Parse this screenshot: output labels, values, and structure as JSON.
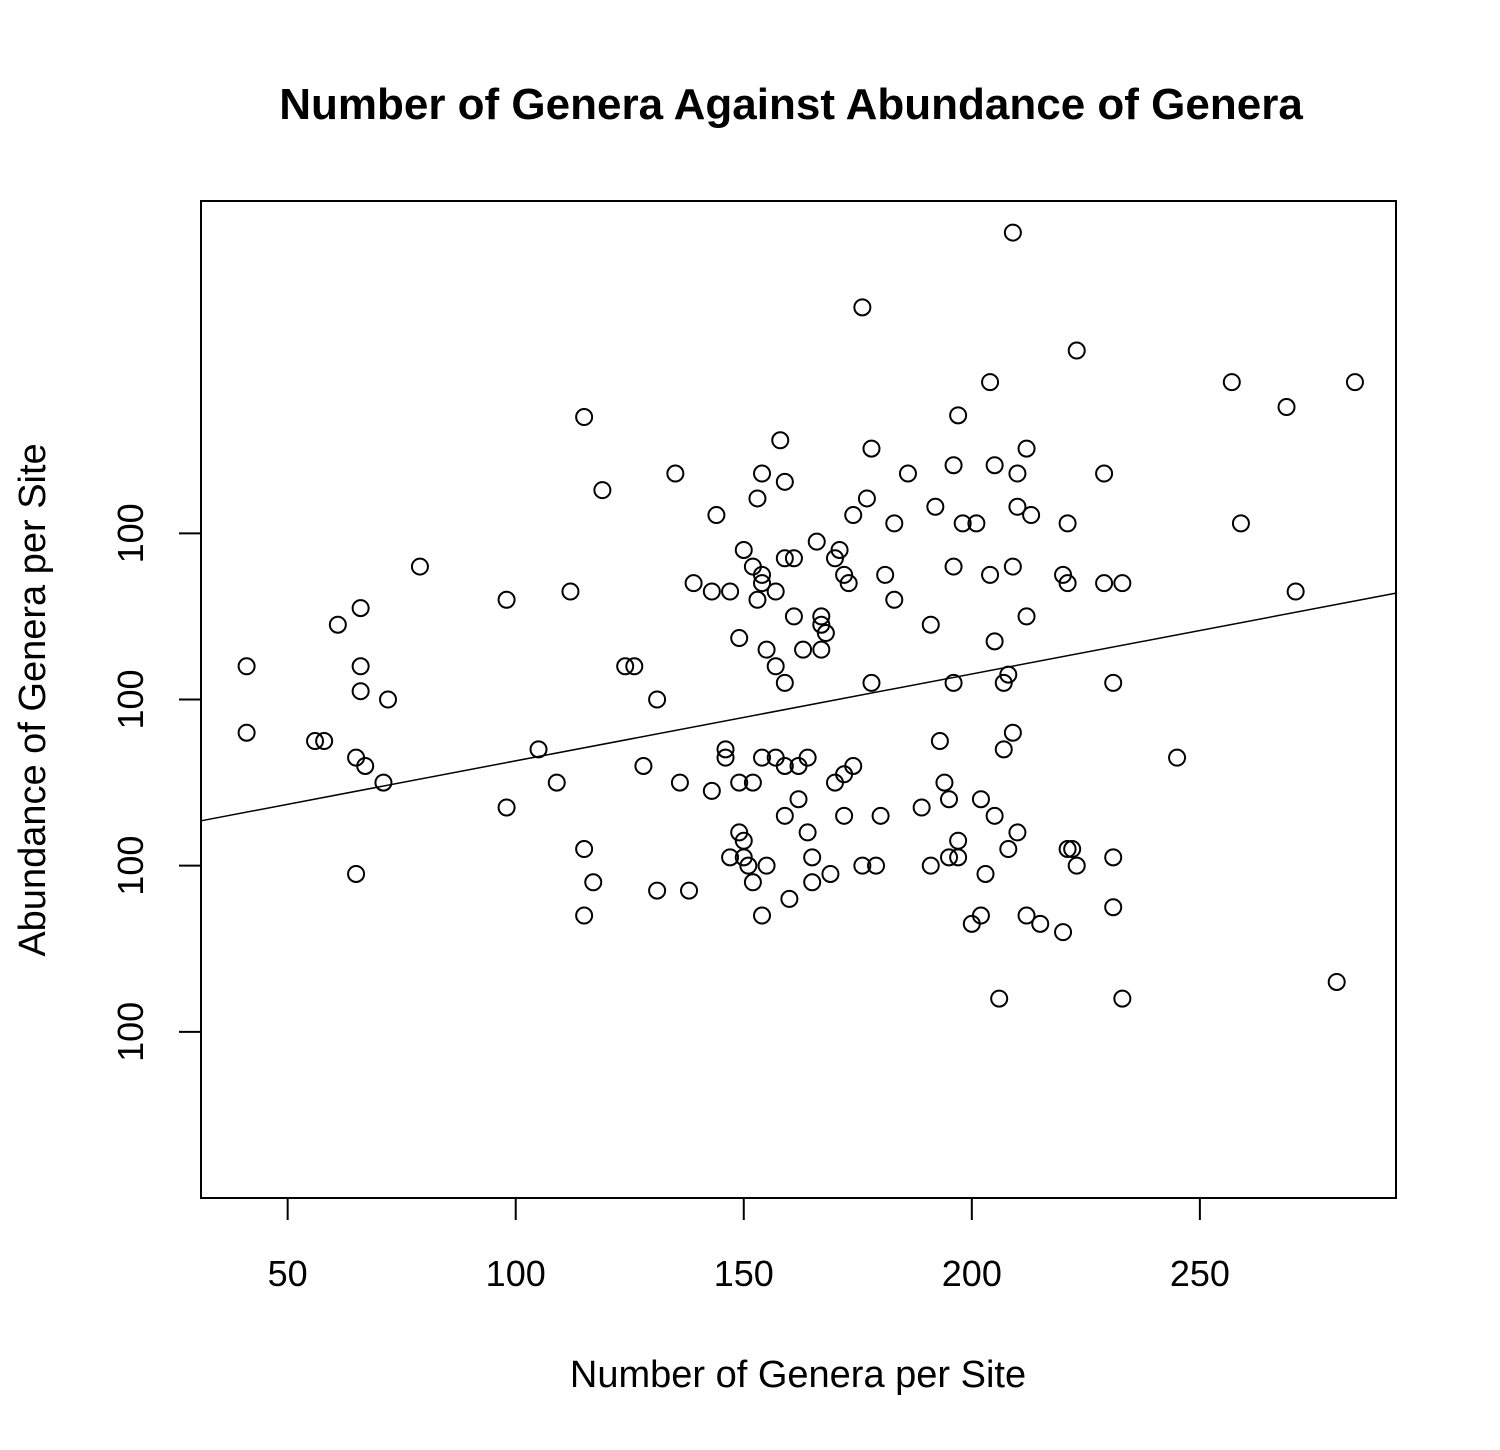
{
  "chart_data": {
    "type": "scatter",
    "title": "Number of Genera  Against Abundance of Genera",
    "xlabel": "Number of Genera per Site",
    "ylabel": "Abundance of Genera per Site",
    "xlim": [
      31,
      293
    ],
    "ylim": [
      79.9,
      80.5
    ],
    "x_ticks": [
      50,
      100,
      150,
      200,
      250
    ],
    "y_ticks": [
      {
        "value": 80.0,
        "label": "100"
      },
      {
        "value": 80.1,
        "label": "100"
      },
      {
        "value": 80.2,
        "label": "100"
      },
      {
        "value": 80.3,
        "label": "100"
      }
    ],
    "regression_line": {
      "x": [
        31,
        293
      ],
      "y": [
        80.127,
        80.264
      ]
    },
    "points": [
      [
        41,
        80.22
      ],
      [
        41,
        80.18
      ],
      [
        56,
        80.175
      ],
      [
        58,
        80.175
      ],
      [
        61,
        80.245
      ],
      [
        65,
        80.165
      ],
      [
        65,
        80.095
      ],
      [
        66,
        80.255
      ],
      [
        66,
        80.22
      ],
      [
        66,
        80.205
      ],
      [
        67,
        80.16
      ],
      [
        71,
        80.15
      ],
      [
        72,
        80.2
      ],
      [
        79,
        80.28
      ],
      [
        98,
        80.26
      ],
      [
        98,
        80.135
      ],
      [
        105,
        80.17
      ],
      [
        109,
        80.15
      ],
      [
        112,
        80.265
      ],
      [
        115,
        80.37
      ],
      [
        115,
        80.11
      ],
      [
        115,
        80.07
      ],
      [
        117,
        80.09
      ],
      [
        119,
        80.326
      ],
      [
        124,
        80.22
      ],
      [
        126,
        80.22
      ],
      [
        128,
        80.16
      ],
      [
        131,
        80.2
      ],
      [
        131,
        80.085
      ],
      [
        135,
        80.336
      ],
      [
        136,
        80.15
      ],
      [
        138,
        80.085
      ],
      [
        139,
        80.27
      ],
      [
        143,
        80.265
      ],
      [
        143,
        80.145
      ],
      [
        144,
        80.311
      ],
      [
        146,
        80.17
      ],
      [
        146,
        80.165
      ],
      [
        147,
        80.265
      ],
      [
        147,
        80.105
      ],
      [
        149,
        80.237
      ],
      [
        149,
        80.15
      ],
      [
        149,
        80.12
      ],
      [
        150,
        80.29
      ],
      [
        150,
        80.115
      ],
      [
        150,
        80.105
      ],
      [
        151,
        80.1
      ],
      [
        152,
        80.28
      ],
      [
        152,
        80.15
      ],
      [
        152,
        80.09
      ],
      [
        153,
        80.321
      ],
      [
        153,
        80.26
      ],
      [
        154,
        80.336
      ],
      [
        154,
        80.275
      ],
      [
        154,
        80.27
      ],
      [
        154,
        80.165
      ],
      [
        154,
        80.07
      ],
      [
        155,
        80.23
      ],
      [
        155,
        80.1
      ],
      [
        157,
        80.265
      ],
      [
        157,
        80.22
      ],
      [
        157,
        80.165
      ],
      [
        158,
        80.356
      ],
      [
        159,
        80.331
      ],
      [
        159,
        80.285
      ],
      [
        159,
        80.21
      ],
      [
        159,
        80.16
      ],
      [
        159,
        80.13
      ],
      [
        160,
        80.08
      ],
      [
        161,
        80.285
      ],
      [
        161,
        80.25
      ],
      [
        162,
        80.16
      ],
      [
        162,
        80.14
      ],
      [
        163,
        80.23
      ],
      [
        164,
        80.165
      ],
      [
        164,
        80.12
      ],
      [
        165,
        80.105
      ],
      [
        165,
        80.09
      ],
      [
        166,
        80.295
      ],
      [
        167,
        80.25
      ],
      [
        167,
        80.245
      ],
      [
        167,
        80.23
      ],
      [
        168,
        80.24
      ],
      [
        169,
        80.095
      ],
      [
        170,
        80.285
      ],
      [
        170,
        80.15
      ],
      [
        171,
        80.29
      ],
      [
        172,
        80.275
      ],
      [
        172,
        80.155
      ],
      [
        172,
        80.13
      ],
      [
        173,
        80.27
      ],
      [
        174,
        80.311
      ],
      [
        174,
        80.16
      ],
      [
        176,
        80.436
      ],
      [
        176,
        80.1
      ],
      [
        177,
        80.321
      ],
      [
        178,
        80.351
      ],
      [
        178,
        80.21
      ],
      [
        179,
        80.1
      ],
      [
        180,
        80.13
      ],
      [
        181,
        80.275
      ],
      [
        183,
        80.306
      ],
      [
        183,
        80.26
      ],
      [
        186,
        80.336
      ],
      [
        189,
        80.135
      ],
      [
        191,
        80.245
      ],
      [
        191,
        80.1
      ],
      [
        192,
        80.316
      ],
      [
        193,
        80.175
      ],
      [
        194,
        80.15
      ],
      [
        195,
        80.14
      ],
      [
        195,
        80.105
      ],
      [
        196,
        80.341
      ],
      [
        196,
        80.28
      ],
      [
        196,
        80.21
      ],
      [
        197,
        80.371
      ],
      [
        197,
        80.115
      ],
      [
        197,
        80.105
      ],
      [
        198,
        80.306
      ],
      [
        200,
        80.065
      ],
      [
        201,
        80.306
      ],
      [
        202,
        80.14
      ],
      [
        202,
        80.07
      ],
      [
        203,
        80.095
      ],
      [
        204,
        80.391
      ],
      [
        204,
        80.275
      ],
      [
        205,
        80.341
      ],
      [
        205,
        80.235
      ],
      [
        205,
        80.13
      ],
      [
        206,
        80.02
      ],
      [
        207,
        80.21
      ],
      [
        207,
        80.17
      ],
      [
        208,
        80.215
      ],
      [
        208,
        80.11
      ],
      [
        209,
        80.481
      ],
      [
        209,
        80.28
      ],
      [
        209,
        80.18
      ],
      [
        210,
        80.336
      ],
      [
        210,
        80.316
      ],
      [
        210,
        80.12
      ],
      [
        212,
        80.351
      ],
      [
        212,
        80.25
      ],
      [
        212,
        80.07
      ],
      [
        213,
        80.311
      ],
      [
        215,
        80.065
      ],
      [
        220,
        80.06
      ],
      [
        220,
        80.275
      ],
      [
        221,
        80.306
      ],
      [
        221,
        80.27
      ],
      [
        221,
        80.11
      ],
      [
        222,
        80.11
      ],
      [
        223,
        80.41
      ],
      [
        223,
        80.1
      ],
      [
        229,
        80.336
      ],
      [
        229,
        80.27
      ],
      [
        231,
        80.21
      ],
      [
        231,
        80.105
      ],
      [
        231,
        80.075
      ],
      [
        233,
        80.27
      ],
      [
        233,
        80.02
      ],
      [
        245,
        80.165
      ],
      [
        257,
        80.391
      ],
      [
        259,
        80.306
      ],
      [
        269,
        80.376
      ],
      [
        271,
        80.265
      ],
      [
        280,
        80.03
      ],
      [
        284,
        80.391
      ]
    ]
  }
}
